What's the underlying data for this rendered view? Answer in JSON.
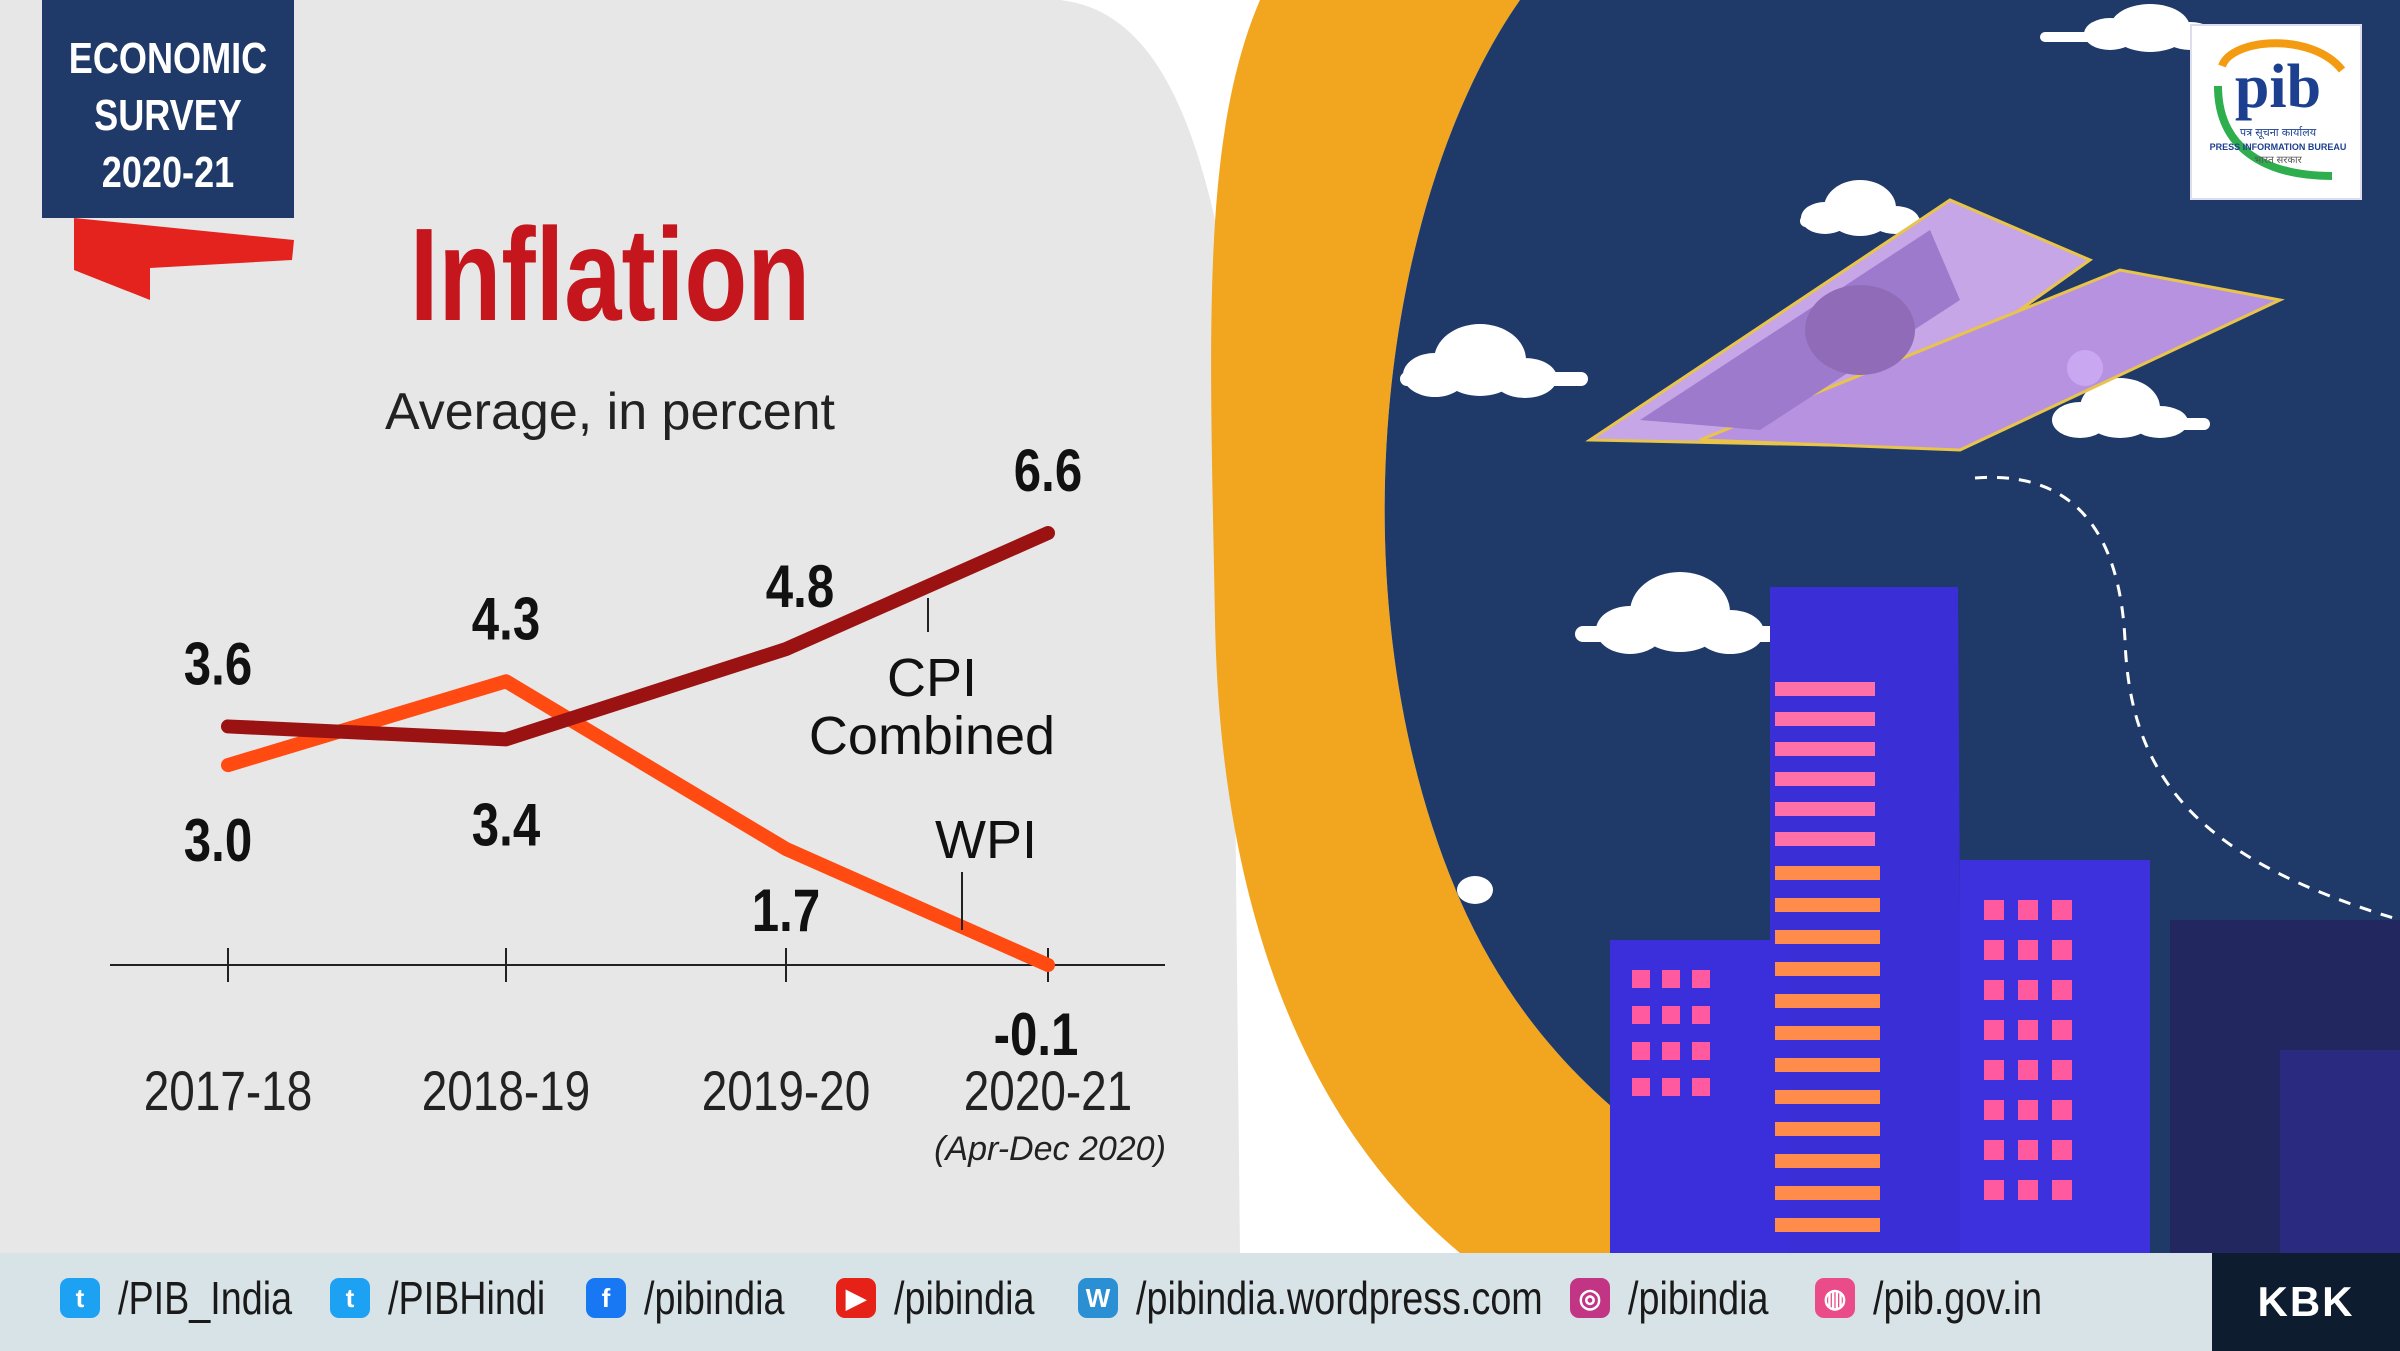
{
  "badge": {
    "line1": "ECONOMIC",
    "line2": "SURVEY",
    "line3": "2020-21"
  },
  "title": "Inflation",
  "subtitle": "Average, in percent",
  "chart_data": {
    "type": "line",
    "title": "Inflation",
    "subtitle": "Average, in percent",
    "categories": [
      "2017-18",
      "2018-19",
      "2019-20",
      "2020-21"
    ],
    "category_notes": [
      "",
      "",
      "",
      "(Apr-Dec 2020)"
    ],
    "series": [
      {
        "name": "CPI Combined",
        "values": [
          3.6,
          3.4,
          4.8,
          6.6
        ],
        "labels": [
          "3.6",
          "3.4",
          "4.8",
          "6.6"
        ],
        "color": "#9b1212"
      },
      {
        "name": "WPI",
        "values": [
          3.0,
          4.3,
          1.7,
          -0.1
        ],
        "labels": [
          "3.0",
          "4.3",
          "1.7",
          "-0.1"
        ],
        "color": "#ff4b12"
      }
    ],
    "series_label_lines": {
      "cpi": [
        "CPI",
        "Combined"
      ],
      "wpi": [
        "WPI"
      ]
    },
    "ylim": [
      -0.1,
      6.6
    ],
    "grid": false,
    "legend": "inline"
  },
  "social": [
    {
      "icon": "twitter-icon",
      "text": "/PIB_India",
      "color": "#1da1f2"
    },
    {
      "icon": "twitter-icon",
      "text": "/PIBHindi",
      "color": "#1da1f2"
    },
    {
      "icon": "facebook-icon",
      "text": "/pibindia",
      "color": "#1877f2"
    },
    {
      "icon": "youtube-icon",
      "text": "/pibindia",
      "color": "#e62117"
    },
    {
      "icon": "wordpress-icon",
      "text": "/pibindia.wordpress.com",
      "color": "#2b8fd4"
    },
    {
      "icon": "instagram-icon",
      "text": "/pibindia",
      "color": "#c13584"
    },
    {
      "icon": "dribbble-icon",
      "text": "/pib.gov.in",
      "color": "#ea4c89"
    }
  ],
  "credit": "KBK",
  "logo": {
    "mark": "pib",
    "line1": "पत्र सूचना कार्यालय",
    "line2": "PRESS INFORMATION BUREAU",
    "line3": "भारत सरकार"
  },
  "colors": {
    "title": "#c4161c",
    "badge": "#1f3a68",
    "sky": "#1f3a68",
    "arc": "#f2a51e",
    "cpi": "#9b1212",
    "wpi": "#ff4b12"
  }
}
